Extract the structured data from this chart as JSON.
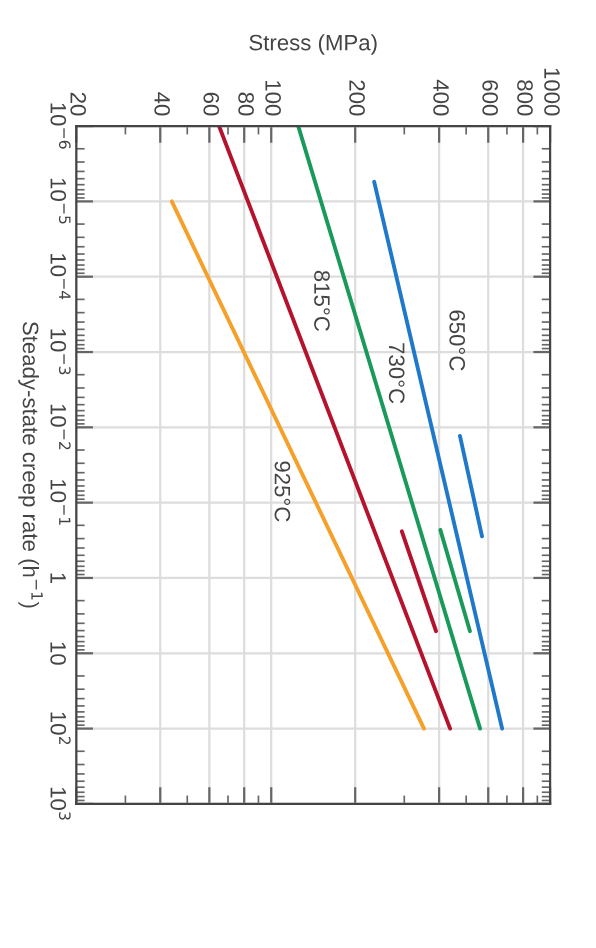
{
  "chart_data": {
    "type": "line",
    "xlabel": "Stress (MPa)",
    "ylabel": "Steady-state creep rate (h$^{−1}$)",
    "log": "xy",
    "xlim": [
      20,
      1000
    ],
    "xticks": [
      20,
      40,
      60,
      80,
      100,
      200,
      400,
      600,
      800,
      1000
    ],
    "ylim": [
      1000,
      1e-06
    ],
    "yticks": [
      {
        "value": 1e-06,
        "label": "10$^{−6}$"
      },
      {
        "value": 1e-05,
        "label": "10$^{−5}$"
      },
      {
        "value": 0.0001,
        "label": "10$^{−4}$"
      },
      {
        "value": 0.001,
        "label": "10$^{−3}$"
      },
      {
        "value": 0.01,
        "label": "10$^{−2}$"
      },
      {
        "value": 0.1,
        "label": "10$^{−1}$"
      },
      1,
      10,
      {
        "value": 100,
        "label": "10$^{2}$"
      },
      {
        "value": 1000,
        "label": "10$^{3}$"
      }
    ],
    "grid": true,
    "marker": "none",
    "line_style": "solid",
    "series": [
      {
        "name": "650°C",
        "color": "#1f78c8",
        "x": [
          234,
          673
        ],
        "values": [
          5.5e-06,
          100
        ]
      },
      {
        "color": "#1f78c8",
        "x": [
          475,
          570
        ],
        "values": [
          0.013,
          0.28
        ]
      },
      {
        "name": "730°C",
        "color": "#1a9a5a",
        "x": [
          125,
          561
        ],
        "values": [
          1e-06,
          100
        ]
      },
      {
        "color": "#1a9a5a",
        "x": [
          404,
          516
        ],
        "values": [
          0.23,
          5.1
        ]
      },
      {
        "name": "815°C",
        "color": "#b5122e",
        "x": [
          65,
          438
        ],
        "values": [
          1e-06,
          100
        ]
      },
      {
        "color": "#b5122e",
        "x": [
          294,
          390
        ],
        "values": [
          0.24,
          5.1
        ]
      },
      {
        "name": "925°C",
        "color": "#f5a02a",
        "x": [
          44,
          353
        ],
        "values": [
          1e-05,
          100
        ]
      }
    ]
  }
}
